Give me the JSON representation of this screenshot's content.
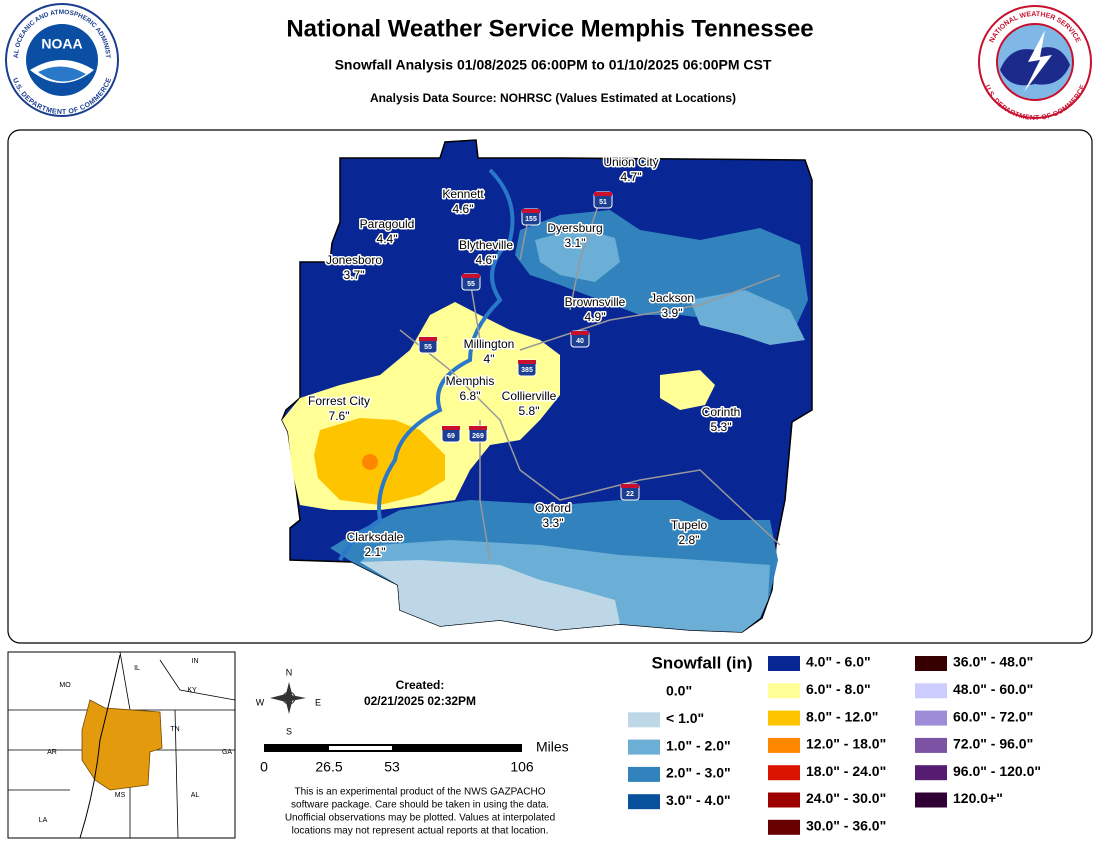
{
  "header": {
    "title": "National Weather Service Memphis Tennessee",
    "subtitle": "Snowfall Analysis 01/08/2025 06:00PM to 01/10/2025 06:00PM CST",
    "source": "Analysis Data Source: NOHRSC (Values Estimated at Locations)"
  },
  "logos": {
    "noaa": {
      "name": "NOAA",
      "top": "NATIONAL OCEANIC AND ATMOSPHERIC ADMINISTRATION",
      "bottom": "U.S. DEPARTMENT OF COMMERCE"
    },
    "nws": {
      "top": "NATIONAL WEATHER SERVICE",
      "bottom": "U.S. DEPARTMENT OF COMMERCE"
    }
  },
  "cities": [
    {
      "name": "Union City",
      "value": "4.7\""
    },
    {
      "name": "Kennett",
      "value": "4.6\""
    },
    {
      "name": "Paragould",
      "value": "4.4\""
    },
    {
      "name": "Dyersburg",
      "value": "3.1\""
    },
    {
      "name": "Blytheville",
      "value": "4.6\""
    },
    {
      "name": "Jonesboro",
      "value": "3.7\""
    },
    {
      "name": "Brownsville",
      "value": "4.9\""
    },
    {
      "name": "Jackson",
      "value": "3.9\""
    },
    {
      "name": "Millington",
      "value": "4\""
    },
    {
      "name": "Memphis",
      "value": "6.8\""
    },
    {
      "name": "Collierville",
      "value": "5.8\""
    },
    {
      "name": "Forrest City",
      "value": "7.6\""
    },
    {
      "name": "Corinth",
      "value": "5.3\""
    },
    {
      "name": "Oxford",
      "value": "3.3\""
    },
    {
      "name": "Tupelo",
      "value": "2.8\""
    },
    {
      "name": "Clarksdale",
      "value": "2.1\""
    }
  ],
  "highways": [
    "51",
    "155",
    "55",
    "40",
    "55",
    "385",
    "69",
    "269",
    "22"
  ],
  "legend": {
    "title": "Snowfall (in)",
    "items": [
      {
        "label": "0.0\"",
        "color": "#ffffff"
      },
      {
        "label": "< 1.0\"",
        "color": "#bdd7e7"
      },
      {
        "label": "1.0\" - 2.0\"",
        "color": "#6baed6"
      },
      {
        "label": "2.0\" - 3.0\"",
        "color": "#3182bd"
      },
      {
        "label": "3.0\" - 4.0\"",
        "color": "#08519c"
      },
      {
        "label": "4.0\" - 6.0\"",
        "color": "#082694"
      },
      {
        "label": "6.0\" - 8.0\"",
        "color": "#ffff96"
      },
      {
        "label": "8.0\" - 12.0\"",
        "color": "#ffc400"
      },
      {
        "label": "12.0\" - 18.0\"",
        "color": "#ff8700"
      },
      {
        "label": "18.0\" - 24.0\"",
        "color": "#db1400"
      },
      {
        "label": "24.0\" - 30.0\"",
        "color": "#9e0000"
      },
      {
        "label": "30.0\" - 36.0\"",
        "color": "#690000"
      },
      {
        "label": "36.0\" - 48.0\"",
        "color": "#360000"
      },
      {
        "label": "48.0\" - 60.0\"",
        "color": "#ccccff"
      },
      {
        "label": "60.0\" - 72.0\"",
        "color": "#9f8cd8"
      },
      {
        "label": "72.0\" - 96.0\"",
        "color": "#7c52a5"
      },
      {
        "label": "96.0\" - 120.0\"",
        "color": "#561c72"
      },
      {
        "label": "120.0+\"",
        "color": "#2e0033"
      }
    ]
  },
  "created": {
    "label": "Created:",
    "date": "02/21/2025 02:32PM"
  },
  "compass": {
    "n": "N",
    "s": "S",
    "e": "E",
    "w": "W"
  },
  "scale": {
    "unit": "Miles",
    "ticks": [
      "0",
      "26.5",
      "53",
      "106"
    ]
  },
  "disclaimer": [
    "This is an experimental product of the NWS GAZPACHO",
    "software package. Care should be taken in using the data.",
    "Unofficial observations may be plotted. Values at interpolated",
    "locations may not represent actual reports at that location."
  ],
  "inset": {
    "states": [
      "MO",
      "IL",
      "IN",
      "KY",
      "TN",
      "AR",
      "MS",
      "AL",
      "LA",
      "GA"
    ]
  }
}
